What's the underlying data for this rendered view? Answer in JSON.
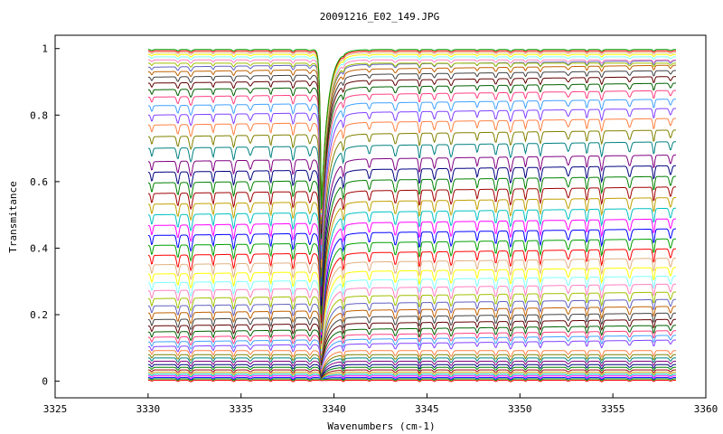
{
  "chart_data": {
    "type": "line",
    "title": "20091216_E02_149.JPG",
    "xlabel": "Wavenumbers (cm-1)",
    "ylabel": "Transmitance",
    "xlim": [
      3325,
      3360
    ],
    "ylim": [
      -0.05,
      1.04
    ],
    "x_ticks": [
      "3325",
      "3330",
      "3335",
      "3340",
      "3345",
      "3350",
      "3355",
      "3360"
    ],
    "y_ticks": [
      "0",
      "0.2",
      "0.4",
      "0.6",
      "0.8",
      "1"
    ],
    "x_range": [
      3330,
      3358.4
    ],
    "grid": false,
    "legend": "none",
    "series_baselines": [
      0.003,
      0.007,
      0.011,
      0.016,
      0.021,
      0.027,
      0.034,
      0.042,
      0.05,
      0.06,
      0.07,
      0.08,
      0.092,
      0.104,
      0.118,
      0.132,
      0.148,
      0.166,
      0.185,
      0.205,
      0.226,
      0.248,
      0.272,
      0.296,
      0.322,
      0.35,
      0.378,
      0.408,
      0.438,
      0.468,
      0.5,
      0.532,
      0.564,
      0.596,
      0.628,
      0.66,
      0.7,
      0.735,
      0.77,
      0.8,
      0.828,
      0.854,
      0.876,
      0.896,
      0.914,
      0.93,
      0.944,
      0.956,
      0.966,
      0.975,
      0.982,
      0.988,
      0.993,
      0.997
    ],
    "features": {
      "strong_absorption_x": 3339.3,
      "absorption_lines_x": [
        3330.2,
        3331.6,
        3332.3,
        3333.5,
        3334.6,
        3335.5,
        3336.6,
        3337.8,
        3338.7,
        3340.5,
        3341.9,
        3343.3,
        3344.6,
        3345.4,
        3346.3,
        3347.7,
        3348.7,
        3349.5,
        3350.3,
        3351.1,
        3352.6,
        3353.6,
        3354.4,
        3355.9,
        3357.2,
        3358.1
      ]
    },
    "colors": [
      "#ff0000",
      "#00a000",
      "#0000ff",
      "#ff00ff",
      "#00c0c0",
      "#c0a000",
      "#a00000",
      "#008000",
      "#000080",
      "#800080",
      "#008080",
      "#808000",
      "#ff8040",
      "#8040ff",
      "#40a0ff",
      "#ff4080",
      "#006000",
      "#600000",
      "#404040",
      "#c06000",
      "#6060c0",
      "#a0c000",
      "#ff80c0",
      "#80ffff",
      "#ffff00",
      "#e0b080"
    ]
  }
}
